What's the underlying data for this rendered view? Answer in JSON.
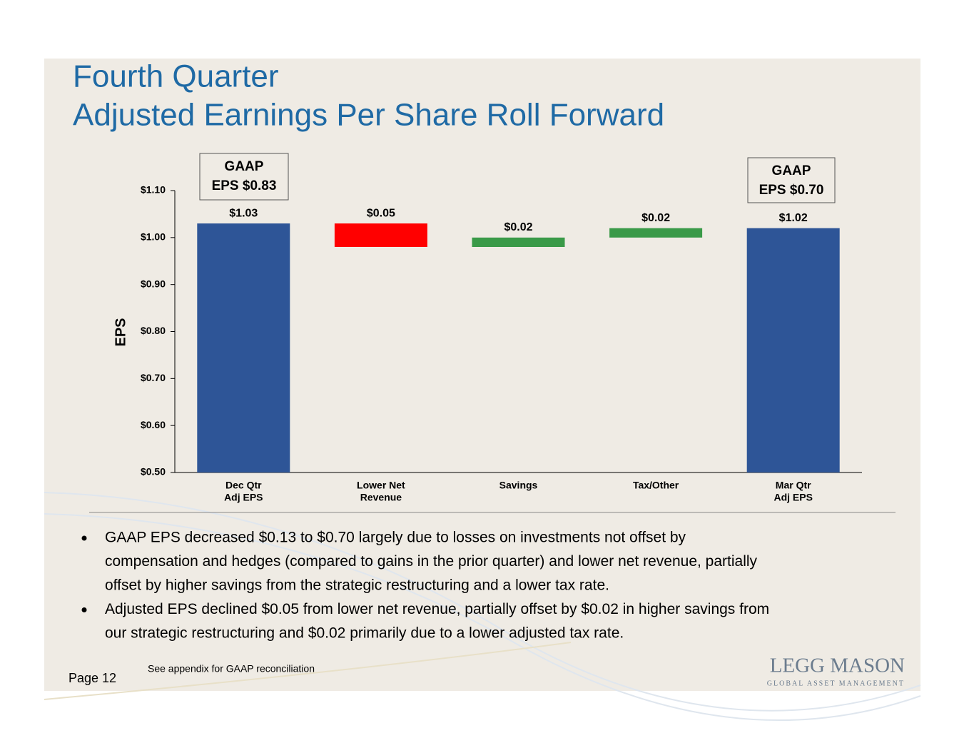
{
  "title": [
    "Fourth Quarter",
    "Adjusted Earnings Per Share Roll Forward"
  ],
  "chart_data": {
    "type": "waterfall",
    "categories": [
      [
        "Dec Qtr",
        "Adj EPS"
      ],
      [
        "Lower Net",
        "Revenue"
      ],
      [
        "Savings"
      ],
      [
        "Tax/Other"
      ],
      [
        "Mar Qtr",
        "Adj EPS"
      ]
    ],
    "measures": [
      "absolute",
      "relative",
      "relative",
      "relative",
      "total"
    ],
    "values": [
      1.03,
      -0.05,
      0.02,
      0.02,
      1.02
    ],
    "value_labels": [
      "$1.03",
      "$0.05",
      "$0.02",
      "$0.02",
      "$1.02"
    ],
    "colors": {
      "total": "#2e5597",
      "increase": "#3a9a48",
      "decrease": "#ff0000"
    },
    "y_label": "EPS",
    "ylim": [
      0.5,
      1.1
    ],
    "yticks": [
      {
        "value": 0.5,
        "label": "$0.50"
      },
      {
        "value": 0.6,
        "label": "$0.60"
      },
      {
        "value": 0.7,
        "label": "$0.70"
      },
      {
        "value": 0.8,
        "label": "$0.80"
      },
      {
        "value": 0.9,
        "label": "$0.90"
      },
      {
        "value": 1.0,
        "label": "$1.00"
      },
      {
        "value": 1.1,
        "label": "$1.10"
      }
    ],
    "annotations": [
      [
        "GAAP",
        "EPS $0.83"
      ],
      [
        "GAAP",
        "EPS $0.70"
      ]
    ]
  },
  "bullets": [
    [
      "GAAP EPS decreased $0.13 to $0.70 largely due to losses on investments not offset by",
      "compensation and hedges (compared to gains in the prior quarter) and lower net revenue, partially",
      "offset by higher savings from the strategic restructuring and a lower tax rate."
    ],
    [
      "Adjusted EPS declined $0.05 from lower net revenue, partially offset by $0.02 in higher savings from",
      "our strategic restructuring and $0.02 primarily due to a lower adjusted tax rate."
    ]
  ],
  "footnote": "See appendix for GAAP reconciliation",
  "page": "Page 12",
  "logo": {
    "name": "LEGG MASON",
    "tagline": "GLOBAL ASSET MANAGEMENT"
  }
}
